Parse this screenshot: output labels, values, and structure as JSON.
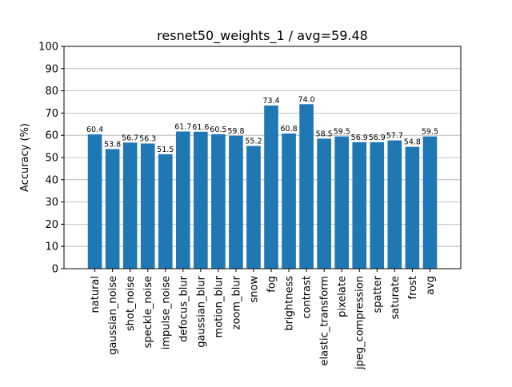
{
  "chart_data": {
    "type": "bar",
    "title": "resnet50_weights_1 / avg=59.48",
    "xlabel": "",
    "ylabel": "Accuracy (%)",
    "ylim": [
      0,
      100
    ],
    "yticks": [
      0,
      10,
      20,
      30,
      40,
      50,
      60,
      70,
      80,
      90,
      100
    ],
    "grid": "y",
    "legend": "none",
    "bar_color": "#1f77b4",
    "grid_color": "#b0b0b0",
    "categories": [
      "natural",
      "gaussian_noise",
      "shot_noise",
      "speckle_noise",
      "impulse_noise",
      "defocus_blur",
      "gaussian_blur",
      "motion_blur",
      "zoom_blur",
      "snow",
      "fog",
      "brightness",
      "contrast",
      "elastic_transform",
      "pixelate",
      "jpeg_compression",
      "spatter",
      "saturate",
      "frost",
      "avg"
    ],
    "values": [
      60.4,
      53.8,
      56.7,
      56.3,
      51.5,
      61.7,
      61.6,
      60.5,
      59.8,
      55.2,
      73.4,
      60.8,
      74.0,
      58.5,
      59.5,
      56.9,
      56.9,
      57.7,
      54.8,
      59.5
    ],
    "value_labels": [
      "60.4",
      "53.8",
      "56.7",
      "56.3",
      "51.5",
      "61.7",
      "61.6",
      "60.5",
      "59.8",
      "55.2",
      "73.4",
      "60.8",
      "74.0",
      "58.5",
      "59.5",
      "56.9",
      "56.9",
      "57.7",
      "54.8",
      "59.5"
    ]
  }
}
